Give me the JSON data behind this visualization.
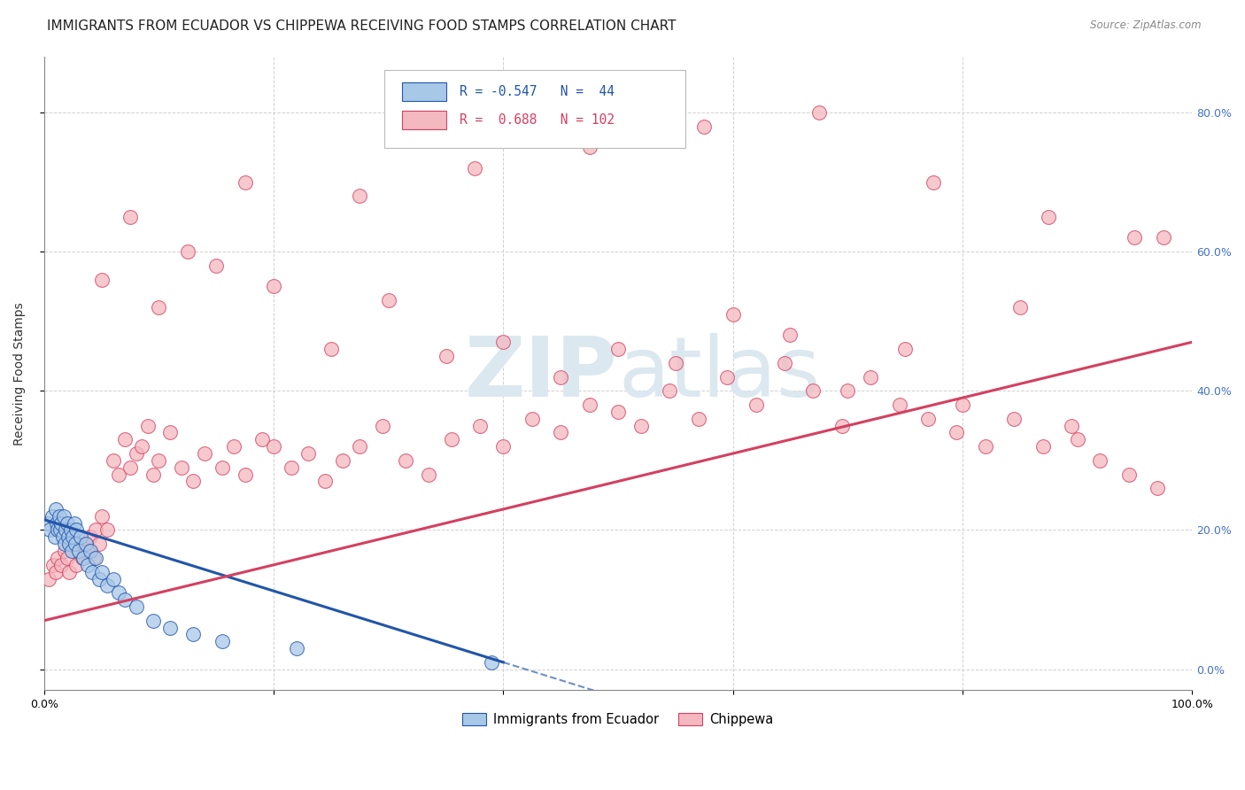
{
  "title": "IMMIGRANTS FROM ECUADOR VS CHIPPEWA RECEIVING FOOD STAMPS CORRELATION CHART",
  "source": "Source: ZipAtlas.com",
  "ylabel": "Receiving Food Stamps",
  "xlim": [
    0.0,
    1.0
  ],
  "ylim": [
    -0.03,
    0.88
  ],
  "xticks": [
    0.0,
    0.2,
    0.4,
    0.6,
    0.8,
    1.0
  ],
  "xtick_labels": [
    "0.0%",
    "",
    "",
    "",
    "",
    "100.0%"
  ],
  "yticks": [
    0.0,
    0.2,
    0.4,
    0.6,
    0.8
  ],
  "ytick_labels_right": [
    "0.0%",
    "20.0%",
    "40.0%",
    "60.0%",
    "80.0%"
  ],
  "series1_color": "#a8c8e8",
  "series2_color": "#f4b8c0",
  "line1_color": "#2255aa",
  "line2_color": "#d44060",
  "watermark_color": "#dce8f0",
  "series1_label": "Immigrants from Ecuador",
  "series2_label": "Chippewa",
  "background_color": "#ffffff",
  "grid_color": "#cccccc",
  "title_fontsize": 11,
  "axis_label_fontsize": 10,
  "tick_fontsize": 9,
  "ec_line_x0": 0.0,
  "ec_line_y0": 0.215,
  "ec_line_x1": 0.4,
  "ec_line_y1": 0.01,
  "ec_line_x_dash_end": 0.58,
  "ch_line_x0": 0.0,
  "ch_line_y0": 0.07,
  "ch_line_x1": 1.0,
  "ch_line_y1": 0.47,
  "ecuador_x": [
    0.003,
    0.005,
    0.007,
    0.009,
    0.01,
    0.011,
    0.012,
    0.013,
    0.014,
    0.015,
    0.016,
    0.017,
    0.018,
    0.019,
    0.02,
    0.021,
    0.022,
    0.023,
    0.024,
    0.025,
    0.026,
    0.027,
    0.028,
    0.03,
    0.032,
    0.034,
    0.036,
    0.038,
    0.04,
    0.042,
    0.045,
    0.048,
    0.05,
    0.055,
    0.06,
    0.065,
    0.07,
    0.08,
    0.095,
    0.11,
    0.13,
    0.155,
    0.22,
    0.39
  ],
  "ecuador_y": [
    0.21,
    0.2,
    0.22,
    0.19,
    0.23,
    0.21,
    0.2,
    0.22,
    0.2,
    0.21,
    0.19,
    0.22,
    0.18,
    0.2,
    0.21,
    0.19,
    0.18,
    0.2,
    0.17,
    0.19,
    0.21,
    0.18,
    0.2,
    0.17,
    0.19,
    0.16,
    0.18,
    0.15,
    0.17,
    0.14,
    0.16,
    0.13,
    0.14,
    0.12,
    0.13,
    0.11,
    0.1,
    0.09,
    0.07,
    0.06,
    0.05,
    0.04,
    0.03,
    0.01
  ],
  "chippewa_x": [
    0.004,
    0.008,
    0.01,
    0.012,
    0.015,
    0.018,
    0.02,
    0.022,
    0.025,
    0.028,
    0.03,
    0.033,
    0.035,
    0.038,
    0.04,
    0.043,
    0.045,
    0.048,
    0.05,
    0.055,
    0.06,
    0.065,
    0.07,
    0.075,
    0.08,
    0.085,
    0.09,
    0.095,
    0.1,
    0.11,
    0.12,
    0.13,
    0.14,
    0.155,
    0.165,
    0.175,
    0.19,
    0.2,
    0.215,
    0.23,
    0.245,
    0.26,
    0.275,
    0.295,
    0.315,
    0.335,
    0.355,
    0.38,
    0.4,
    0.425,
    0.45,
    0.475,
    0.5,
    0.52,
    0.545,
    0.57,
    0.595,
    0.62,
    0.645,
    0.67,
    0.695,
    0.72,
    0.745,
    0.77,
    0.795,
    0.82,
    0.845,
    0.87,
    0.895,
    0.92,
    0.945,
    0.97,
    0.1,
    0.2,
    0.3,
    0.4,
    0.5,
    0.6,
    0.7,
    0.8,
    0.9,
    0.05,
    0.15,
    0.25,
    0.35,
    0.45,
    0.55,
    0.65,
    0.75,
    0.85,
    0.95,
    0.075,
    0.175,
    0.275,
    0.375,
    0.475,
    0.575,
    0.675,
    0.775,
    0.875,
    0.975,
    0.125
  ],
  "chippewa_y": [
    0.13,
    0.15,
    0.14,
    0.16,
    0.15,
    0.17,
    0.16,
    0.14,
    0.18,
    0.15,
    0.17,
    0.16,
    0.18,
    0.17,
    0.19,
    0.16,
    0.2,
    0.18,
    0.22,
    0.2,
    0.3,
    0.28,
    0.33,
    0.29,
    0.31,
    0.32,
    0.35,
    0.28,
    0.3,
    0.34,
    0.29,
    0.27,
    0.31,
    0.29,
    0.32,
    0.28,
    0.33,
    0.32,
    0.29,
    0.31,
    0.27,
    0.3,
    0.32,
    0.35,
    0.3,
    0.28,
    0.33,
    0.35,
    0.32,
    0.36,
    0.34,
    0.38,
    0.37,
    0.35,
    0.4,
    0.36,
    0.42,
    0.38,
    0.44,
    0.4,
    0.35,
    0.42,
    0.38,
    0.36,
    0.34,
    0.32,
    0.36,
    0.32,
    0.35,
    0.3,
    0.28,
    0.26,
    0.52,
    0.55,
    0.53,
    0.47,
    0.46,
    0.51,
    0.4,
    0.38,
    0.33,
    0.56,
    0.58,
    0.46,
    0.45,
    0.42,
    0.44,
    0.48,
    0.46,
    0.52,
    0.62,
    0.65,
    0.7,
    0.68,
    0.72,
    0.75,
    0.78,
    0.8,
    0.7,
    0.65,
    0.62,
    0.6
  ]
}
